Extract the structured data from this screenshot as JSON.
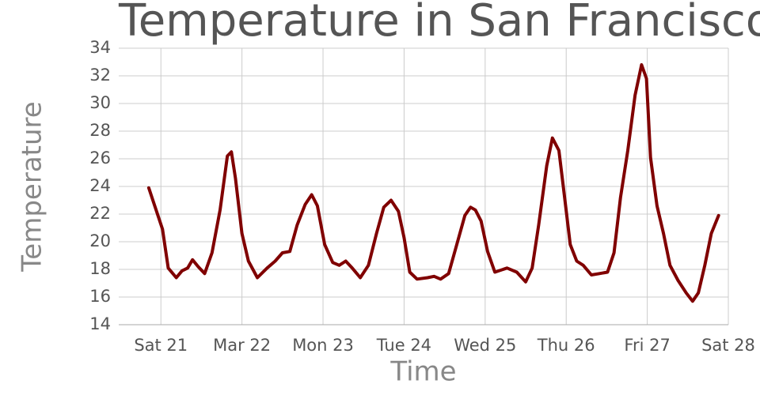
{
  "chart_data": {
    "type": "line",
    "title": "Temperature in San Francisco",
    "x_label": "Time",
    "y_label": "Temperature",
    "x": [
      20.85,
      21.02,
      21.09,
      21.19,
      21.26,
      21.33,
      21.39,
      21.46,
      21.54,
      21.63,
      21.73,
      21.82,
      21.87,
      21.92,
      22.0,
      22.08,
      22.19,
      22.31,
      22.41,
      22.5,
      22.59,
      22.68,
      22.78,
      22.86,
      22.93,
      23.02,
      23.12,
      23.2,
      23.28,
      23.36,
      23.46,
      23.56,
      23.66,
      23.75,
      23.84,
      23.93,
      24.0,
      24.07,
      24.16,
      24.29,
      24.37,
      24.45,
      24.55,
      24.65,
      24.75,
      24.82,
      24.88,
      24.95,
      25.03,
      25.12,
      25.27,
      25.39,
      25.5,
      25.58,
      25.66,
      25.76,
      25.83,
      25.91,
      25.98,
      26.05,
      26.13,
      26.21,
      26.31,
      26.41,
      26.51,
      26.59,
      26.67,
      26.76,
      26.85,
      26.93,
      26.99,
      27.04,
      27.12,
      27.2,
      27.28,
      27.38,
      27.48,
      27.56,
      27.63,
      27.71,
      27.79,
      27.88
    ],
    "series": [
      {
        "color": "#800000",
        "values": [
          23.9,
          20.9,
          18.1,
          17.4,
          17.9,
          18.1,
          18.7,
          18.2,
          17.7,
          19.2,
          22.3,
          26.2,
          26.5,
          24.6,
          20.6,
          18.6,
          17.4,
          18.1,
          18.6,
          19.2,
          19.3,
          21.2,
          22.7,
          23.4,
          22.6,
          19.8,
          18.5,
          18.3,
          18.6,
          18.1,
          17.4,
          18.3,
          20.6,
          22.5,
          23.0,
          22.2,
          20.3,
          17.8,
          17.3,
          17.4,
          17.5,
          17.3,
          17.7,
          19.8,
          21.9,
          22.5,
          22.3,
          21.5,
          19.3,
          17.8,
          18.1,
          17.8,
          17.1,
          18.1,
          21.2,
          25.5,
          27.5,
          26.6,
          23.2,
          19.8,
          18.6,
          18.3,
          17.6,
          17.7,
          17.8,
          19.2,
          23.2,
          26.6,
          30.6,
          32.8,
          31.8,
          26.1,
          22.6,
          20.6,
          18.3,
          17.2,
          16.3,
          15.7,
          16.3,
          18.3,
          20.6,
          21.9
        ]
      }
    ],
    "xlim": [
      20.48,
      28
    ],
    "xticks": [
      {
        "value": 21,
        "label": "Sat 21"
      },
      {
        "value": 22,
        "label": "Mar 22"
      },
      {
        "value": 23,
        "label": "Mon 23"
      },
      {
        "value": 24,
        "label": "Tue 24"
      },
      {
        "value": 25,
        "label": "Wed 25"
      },
      {
        "value": 26,
        "label": "Thu 26"
      },
      {
        "value": 27,
        "label": "Fri 27"
      },
      {
        "value": 28,
        "label": "Sat 28"
      }
    ],
    "ylim": [
      14,
      34
    ],
    "yticks": [
      14,
      16,
      18,
      20,
      22,
      24,
      26,
      28,
      30,
      32,
      34
    ],
    "grid": true
  }
}
